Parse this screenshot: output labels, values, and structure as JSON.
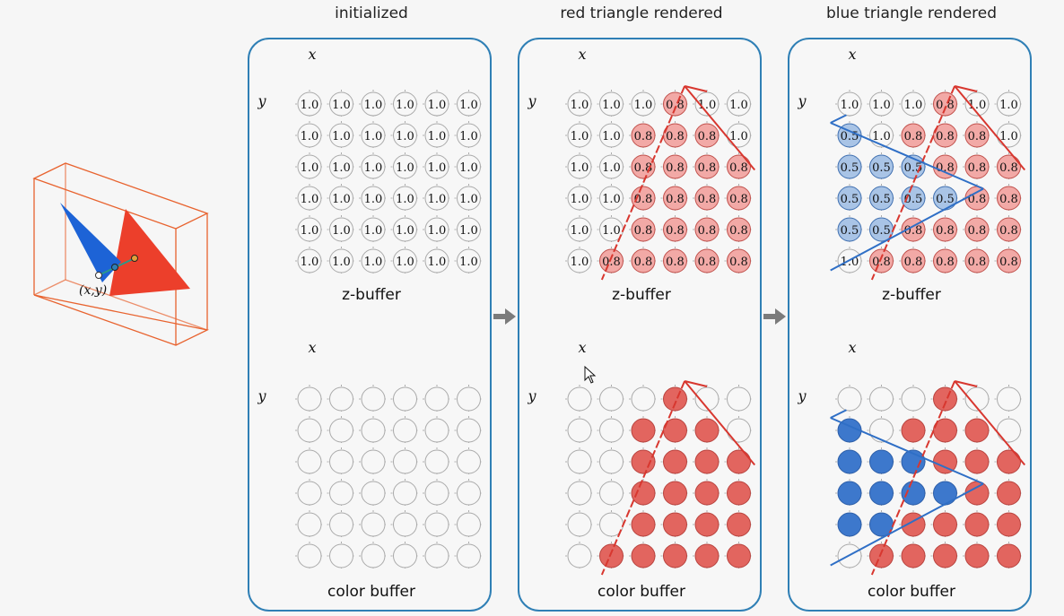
{
  "stages": [
    {
      "title": "initialized",
      "zbuffer": [
        [
          "1.0",
          "1.0",
          "1.0",
          "1.0",
          "1.0",
          "1.0"
        ],
        [
          "1.0",
          "1.0",
          "1.0",
          "1.0",
          "1.0",
          "1.0"
        ],
        [
          "1.0",
          "1.0",
          "1.0",
          "1.0",
          "1.0",
          "1.0"
        ],
        [
          "1.0",
          "1.0",
          "1.0",
          "1.0",
          "1.0",
          "1.0"
        ],
        [
          "1.0",
          "1.0",
          "1.0",
          "1.0",
          "1.0",
          "1.0"
        ],
        [
          "1.0",
          "1.0",
          "1.0",
          "1.0",
          "1.0",
          "1.0"
        ]
      ],
      "colorbuffer": [
        [
          "e",
          "e",
          "e",
          "e",
          "e",
          "e"
        ],
        [
          "e",
          "e",
          "e",
          "e",
          "e",
          "e"
        ],
        [
          "e",
          "e",
          "e",
          "e",
          "e",
          "e"
        ],
        [
          "e",
          "e",
          "e",
          "e",
          "e",
          "e"
        ],
        [
          "e",
          "e",
          "e",
          "e",
          "e",
          "e"
        ],
        [
          "e",
          "e",
          "e",
          "e",
          "e",
          "e"
        ]
      ],
      "red_edges": false,
      "blue_edges": false
    },
    {
      "title": "red triangle rendered",
      "zbuffer": [
        [
          "1.0",
          "1.0",
          "1.0",
          "0.8",
          "1.0",
          "1.0"
        ],
        [
          "1.0",
          "1.0",
          "0.8",
          "0.8",
          "0.8",
          "1.0"
        ],
        [
          "1.0",
          "1.0",
          "0.8",
          "0.8",
          "0.8",
          "0.8"
        ],
        [
          "1.0",
          "1.0",
          "0.8",
          "0.8",
          "0.8",
          "0.8"
        ],
        [
          "1.0",
          "1.0",
          "0.8",
          "0.8",
          "0.8",
          "0.8"
        ],
        [
          "1.0",
          "0.8",
          "0.8",
          "0.8",
          "0.8",
          "0.8"
        ]
      ],
      "colorbuffer": [
        [
          "e",
          "e",
          "e",
          "r",
          "e",
          "e"
        ],
        [
          "e",
          "e",
          "r",
          "r",
          "r",
          "e"
        ],
        [
          "e",
          "e",
          "r",
          "r",
          "r",
          "r"
        ],
        [
          "e",
          "e",
          "r",
          "r",
          "r",
          "r"
        ],
        [
          "e",
          "e",
          "r",
          "r",
          "r",
          "r"
        ],
        [
          "e",
          "r",
          "r",
          "r",
          "r",
          "r"
        ]
      ],
      "red_edges": true,
      "blue_edges": false
    },
    {
      "title": "blue triangle rendered",
      "zbuffer": [
        [
          "1.0",
          "1.0",
          "1.0",
          "0.8",
          "1.0",
          "1.0"
        ],
        [
          "0.5",
          "1.0",
          "0.8",
          "0.8",
          "0.8",
          "1.0"
        ],
        [
          "0.5",
          "0.5",
          "0.5",
          "0.8",
          "0.8",
          "0.8"
        ],
        [
          "0.5",
          "0.5",
          "0.5",
          "0.5",
          "0.8",
          "0.8"
        ],
        [
          "0.5",
          "0.5",
          "0.8",
          "0.8",
          "0.8",
          "0.8"
        ],
        [
          "1.0",
          "0.8",
          "0.8",
          "0.8",
          "0.8",
          "0.8"
        ]
      ],
      "colorbuffer": [
        [
          "e",
          "e",
          "e",
          "r",
          "e",
          "e"
        ],
        [
          "b",
          "e",
          "r",
          "r",
          "r",
          "e"
        ],
        [
          "b",
          "b",
          "b",
          "r",
          "r",
          "r"
        ],
        [
          "b",
          "b",
          "b",
          "b",
          "r",
          "r"
        ],
        [
          "b",
          "b",
          "r",
          "r",
          "r",
          "r"
        ],
        [
          "e",
          "r",
          "r",
          "r",
          "r",
          "r"
        ]
      ],
      "red_edges": true,
      "blue_edges": true
    }
  ],
  "labels": {
    "axis_x": "x",
    "axis_y": "y",
    "zbuffer": "z-buffer",
    "colorbuffer": "color buffer",
    "point": "(x,y)"
  },
  "colors": {
    "panel_border": "#2f7fb5",
    "red_fill": "#e2655f",
    "red_light": "#f2a9a6",
    "blue_fill": "#3d78cc",
    "blue_light": "#a9c4e6",
    "red_line": "#d8372f",
    "blue_line": "#2f6fc6",
    "box_line": "#e8632f",
    "arrow": "#7b7b7b"
  }
}
